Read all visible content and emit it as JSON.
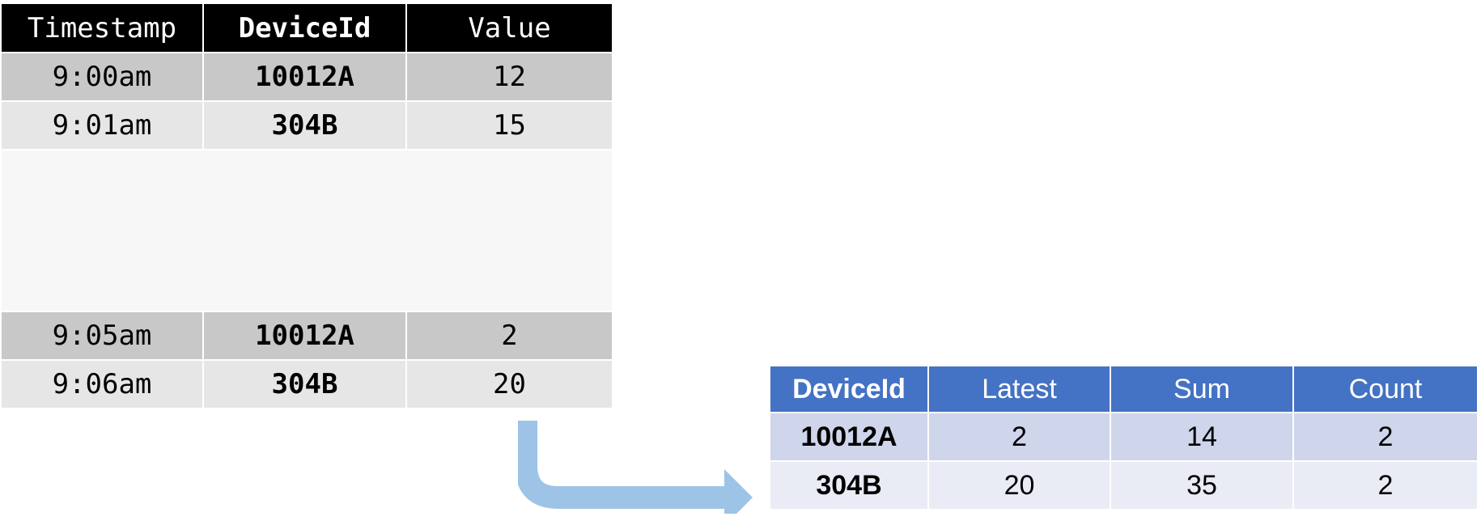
{
  "source_table": {
    "headers": [
      "Timestamp",
      "DeviceId",
      "Value"
    ],
    "rows_top": [
      [
        "9:00am",
        "10012A",
        "12"
      ],
      [
        "9:01am",
        "304B",
        "15"
      ]
    ],
    "rows_bottom": [
      [
        "9:05am",
        "10012A",
        "2"
      ],
      [
        "9:06am",
        "304B",
        "20"
      ]
    ]
  },
  "result_table": {
    "headers": [
      "DeviceId",
      "Latest",
      "Sum",
      "Count"
    ],
    "rows": [
      [
        "10012A",
        "2",
        "14",
        "2"
      ],
      [
        "304B",
        "20",
        "35",
        "2"
      ]
    ]
  },
  "colors": {
    "source_header": "#000000",
    "source_row_dark": "#c8c8c8",
    "source_row_light": "#e6e6e6",
    "result_header": "#4472c4",
    "result_row_1": "#cfd5ea",
    "result_row_2": "#e9ebf5",
    "arrow": "#9dc3e6"
  }
}
